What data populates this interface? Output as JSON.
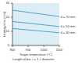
{
  "chart_data": {
    "type": "line",
    "x_label": "Target temperature (°C)",
    "y_label": "Heating time (min)",
    "annotations": [
      "Length of bar, t = 1 × diameter"
    ],
    "x": [
      800,
      900,
      1000,
      1100
    ],
    "xlim": [
      800,
      1100
    ],
    "xticks": [
      800,
      900,
      1000,
      1100
    ],
    "ylim": [
      0,
      30
    ],
    "yticks": [
      0,
      10,
      20,
      30
    ],
    "grid": false,
    "series": [
      {
        "name": "d = 70 mm",
        "color": "#4aa8cf",
        "values": [
          25,
          23.5,
          22,
          20.5
        ]
      },
      {
        "name": "d = 50 mm",
        "color": "#4aa8cf",
        "values": [
          17,
          15.8,
          14.6,
          13.4
        ]
      },
      {
        "name": "d = 30 mm",
        "color": "#4aa8cf",
        "values": [
          12,
          11,
          10,
          9
        ]
      }
    ]
  }
}
